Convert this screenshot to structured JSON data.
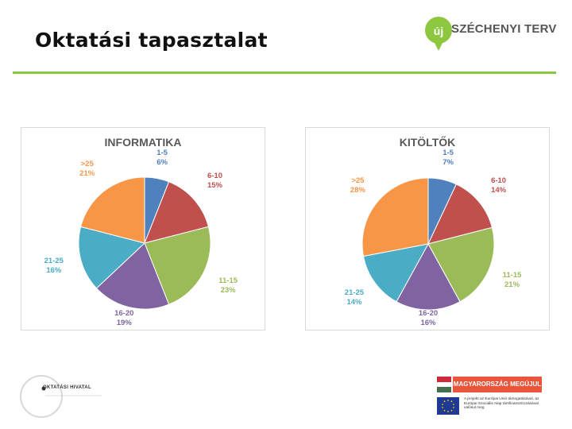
{
  "slide": {
    "title": "Oktatási tapasztalat",
    "brand": "SZÉCHENYI TERV",
    "brand_mark": "új",
    "footer_left": "OKTATÁSI HIVATAL",
    "footer_banner": "MAGYARORSZÁG MEGÚJUL",
    "footer_eu_text": "A projekt az Európai Unió támogatásával, az Európai Szociális Alap társfinanszírozásával valósul meg",
    "colors": {
      "accent_green": "#8dc63f",
      "slice_1_5": "#4f81bd",
      "slice_6_10": "#c0504d",
      "slice_11_15": "#9bbb59",
      "slice_16_20": "#8064a2",
      "slice_21_25": "#4bacc6",
      "slice_gt25": "#f79646"
    }
  },
  "chart_data": [
    {
      "type": "pie",
      "title": "INFORMATIKA",
      "categories": [
        "1-5",
        "6-10",
        "11-15",
        "16-20",
        "21-25",
        ">25"
      ],
      "values": [
        6,
        15,
        23,
        19,
        16,
        21
      ],
      "value_labels": [
        "6%",
        "15%",
        "23%",
        "19%",
        "16%",
        "21%"
      ],
      "legend": "none"
    },
    {
      "type": "pie",
      "title": "KITÖLTŐK",
      "categories": [
        "1-5",
        "6-10",
        "11-15",
        "16-20",
        "21-25",
        ">25"
      ],
      "values": [
        7,
        14,
        21,
        16,
        14,
        28
      ],
      "value_labels": [
        "7%",
        "14%",
        "21%",
        "16%",
        "14%",
        "28%"
      ],
      "legend": "none"
    }
  ]
}
